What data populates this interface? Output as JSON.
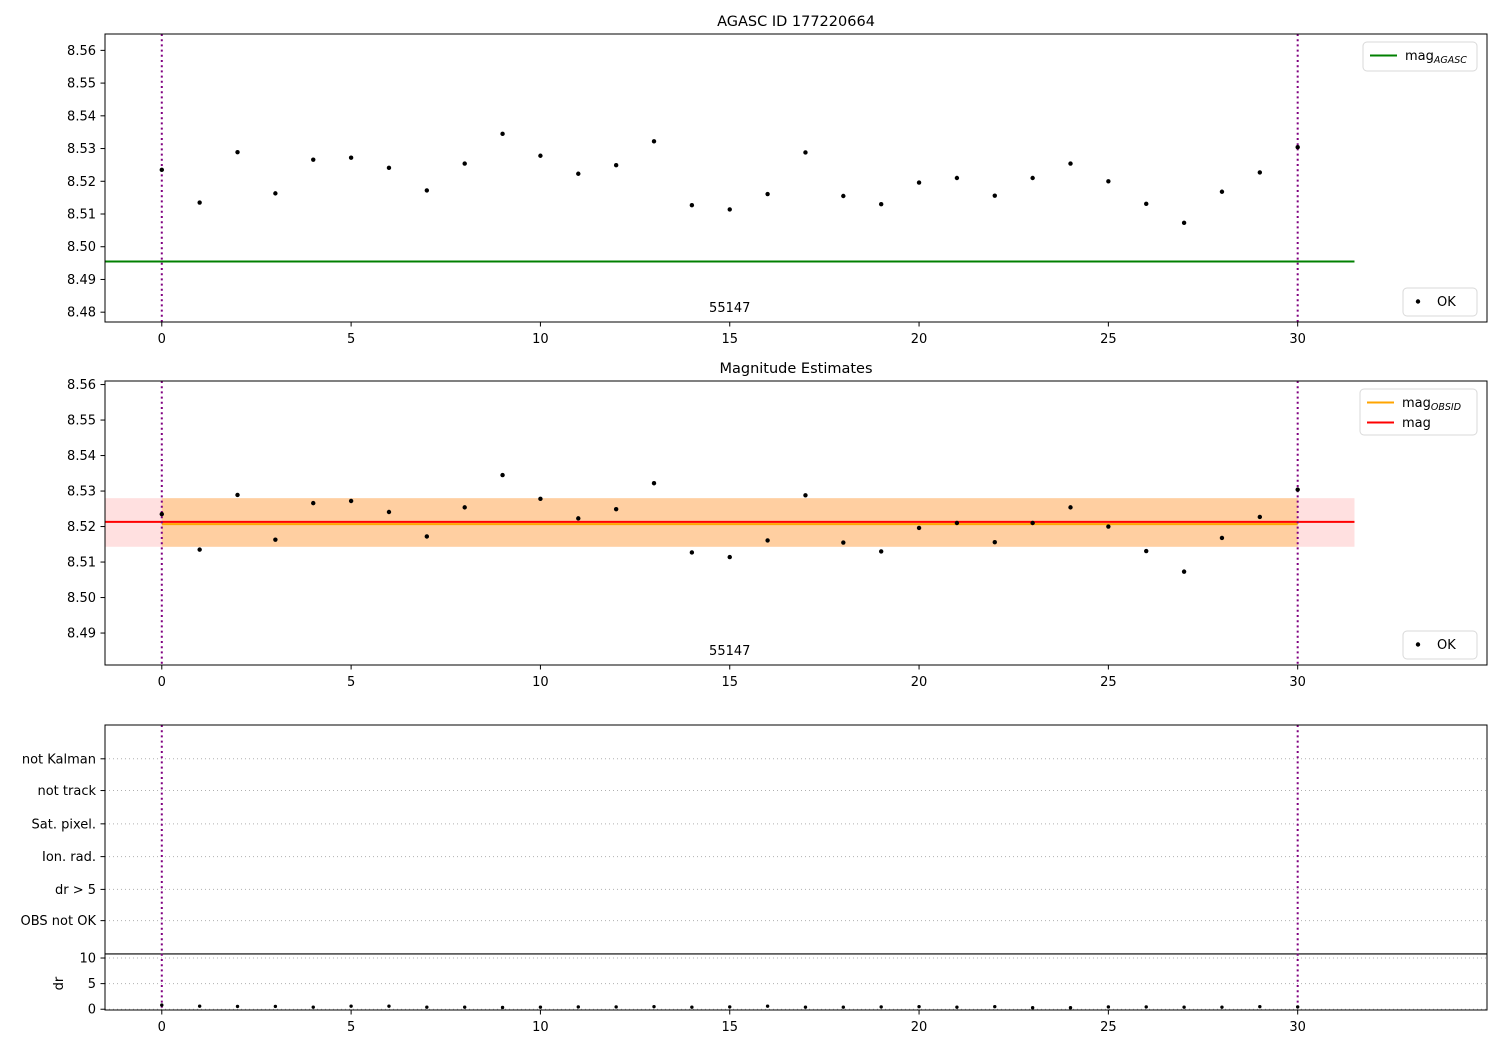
{
  "figure": {
    "background": "#ffffff",
    "text_color": "#000000"
  },
  "colors": {
    "agasc_line": "#008000",
    "obsid_line": "#ffa500",
    "mag_line": "#ff0000",
    "marker": "#000000",
    "obsid_vline": "#800080",
    "mag_band": "rgba(255, 0, 0, 0.12)",
    "obsid_band": "rgba(255, 165, 0, 0.28)",
    "grid": "#b0b0b0",
    "frame": "#000000",
    "legend_border": "#d9d9d9"
  },
  "chart_data": [
    {
      "type": "scatter",
      "name": "agasc-mag-plot",
      "title": "AGASC ID 177220664",
      "grid": false,
      "xlim": [
        -1.5,
        35.0
      ],
      "ylim": [
        8.477,
        8.565
      ],
      "xticks": [
        0,
        5,
        10,
        15,
        20,
        25,
        30
      ],
      "xtick_labels": [
        "0",
        "5",
        "10",
        "15",
        "20",
        "25",
        "30"
      ],
      "yticks": [
        8.48,
        8.49,
        8.5,
        8.51,
        8.52,
        8.53,
        8.54,
        8.55,
        8.56
      ],
      "ytick_labels": [
        "8.48",
        "8.49",
        "8.50",
        "8.51",
        "8.52",
        "8.53",
        "8.54",
        "8.55",
        "8.56"
      ],
      "x": [
        0,
        1,
        2,
        3,
        4,
        5,
        6,
        7,
        8,
        9,
        10,
        11,
        12,
        13,
        14,
        15,
        16,
        17,
        18,
        19,
        20,
        21,
        22,
        23,
        24,
        25,
        26,
        27,
        28,
        29,
        30
      ],
      "y": [
        8.5235,
        8.5135,
        8.5289,
        8.5163,
        8.5266,
        8.5272,
        8.5241,
        8.5172,
        8.5254,
        8.5345,
        8.5278,
        8.5223,
        8.5249,
        8.5322,
        8.5127,
        8.5114,
        8.5161,
        8.5288,
        8.5155,
        8.513,
        8.5196,
        8.521,
        8.5156,
        8.521,
        8.5254,
        8.52,
        8.5131,
        8.5073,
        8.5168,
        8.5227,
        8.5304
      ],
      "agasc_mag_line": {
        "value": 8.4955,
        "x_start": -1.5,
        "x_end": 31.5
      },
      "obsid_vlines": {
        "values": [
          0,
          30
        ]
      },
      "obsid_annotation": {
        "text": "55147",
        "x": 15
      },
      "legend_upper_right": [
        {
          "swatch": "line",
          "color": "#008000",
          "label": "mag",
          "sub": "AGASC"
        }
      ],
      "legend_lower_right": [
        {
          "swatch": "dot",
          "color": "#000000",
          "label": "OK"
        }
      ]
    },
    {
      "type": "scatter",
      "name": "magnitude-estimates-plot",
      "title": "Magnitude Estimates",
      "grid": false,
      "xlim": [
        -1.5,
        35.0
      ],
      "ylim": [
        8.481,
        8.561
      ],
      "xticks": [
        0,
        5,
        10,
        15,
        20,
        25,
        30
      ],
      "xtick_labels": [
        "0",
        "5",
        "10",
        "15",
        "20",
        "25",
        "30"
      ],
      "yticks": [
        8.49,
        8.5,
        8.51,
        8.52,
        8.53,
        8.54,
        8.55,
        8.56
      ],
      "ytick_labels": [
        "8.49",
        "8.50",
        "8.51",
        "8.52",
        "8.53",
        "8.54",
        "8.55",
        "8.56"
      ],
      "x": [
        0,
        1,
        2,
        3,
        4,
        5,
        6,
        7,
        8,
        9,
        10,
        11,
        12,
        13,
        14,
        15,
        16,
        17,
        18,
        19,
        20,
        21,
        22,
        23,
        24,
        25,
        26,
        27,
        28,
        29,
        30
      ],
      "y": [
        8.5235,
        8.5135,
        8.5289,
        8.5163,
        8.5266,
        8.5272,
        8.5241,
        8.5172,
        8.5254,
        8.5345,
        8.5278,
        8.5223,
        8.5249,
        8.5322,
        8.5127,
        8.5114,
        8.5161,
        8.5288,
        8.5155,
        8.513,
        8.5196,
        8.521,
        8.5156,
        8.521,
        8.5254,
        8.52,
        8.5131,
        8.5073,
        8.5168,
        8.5227,
        8.5304
      ],
      "mag_line": {
        "value": 8.5213,
        "x_start": -1.5,
        "x_end": 31.5
      },
      "mag_band": {
        "low": 8.5143,
        "high": 8.528,
        "x_start": -1.5,
        "x_end": 31.5
      },
      "obsid_mag_line": {
        "value": 8.5207,
        "x_start": 0,
        "x_end": 30
      },
      "obsid_band": {
        "low": 8.5143,
        "high": 8.528,
        "x_start": 0,
        "x_end": 30
      },
      "obsid_vlines": {
        "values": [
          0,
          30
        ]
      },
      "obsid_annotation": {
        "text": "55147",
        "x": 15
      },
      "legend_upper_right": [
        {
          "swatch": "line",
          "color": "#ffa500",
          "label": "mag",
          "sub": "OBSID"
        },
        {
          "swatch": "line",
          "color": "#ff0000",
          "label": "mag",
          "sub": ""
        }
      ],
      "legend_lower_right": [
        {
          "swatch": "dot",
          "color": "#000000",
          "label": "OK"
        }
      ]
    },
    {
      "type": "flags",
      "name": "flags-dr-plot",
      "title": "",
      "grid": true,
      "xlim": [
        -1.5,
        35.0
      ],
      "ylim": [
        -0.15,
        55.5
      ],
      "xticks": [
        0,
        5,
        10,
        15,
        20,
        25,
        30
      ],
      "xtick_labels": [
        "0",
        "5",
        "10",
        "15",
        "20",
        "25",
        "30"
      ],
      "flag_categories": [
        {
          "label": "not Kalman",
          "level": 48.9
        },
        {
          "label": "not track",
          "level": 42.7
        },
        {
          "label": "Sat. pixel.",
          "level": 36.2
        },
        {
          "label": "Ion. rad.",
          "level": 29.8
        },
        {
          "label": "dr > 5",
          "level": 23.4
        },
        {
          "label": "OBS not OK",
          "level": 17.3
        }
      ],
      "dr_ticks": [
        0,
        5,
        10
      ],
      "dr_tick_labels": [
        "0",
        "5",
        "10"
      ],
      "dr_axis_label": "dr",
      "separator_line": {
        "value": 10.8
      },
      "x": [
        0,
        1,
        2,
        3,
        4,
        5,
        6,
        7,
        8,
        9,
        10,
        11,
        12,
        13,
        14,
        15,
        16,
        17,
        18,
        19,
        20,
        21,
        22,
        23,
        24,
        25,
        26,
        27,
        28,
        29,
        30
      ],
      "y": [
        0.8,
        0.6,
        0.55,
        0.55,
        0.4,
        0.6,
        0.6,
        0.4,
        0.4,
        0.35,
        0.4,
        0.45,
        0.45,
        0.5,
        0.4,
        0.45,
        0.6,
        0.4,
        0.4,
        0.45,
        0.5,
        0.4,
        0.5,
        0.3,
        0.3,
        0.45,
        0.45,
        0.4,
        0.4,
        0.5,
        0.45
      ],
      "obsid_vlines": {
        "values": [
          0,
          30
        ]
      }
    }
  ]
}
